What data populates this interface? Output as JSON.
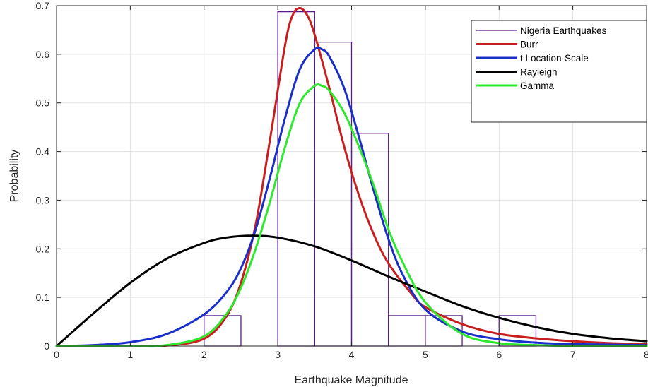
{
  "chart_data": {
    "type": "histogram-with-fitted-curves",
    "xlabel": "Earthquake Magnitude",
    "ylabel": "Probability",
    "xlim": [
      0,
      8
    ],
    "ylim": [
      0,
      0.7
    ],
    "xticks": [
      0,
      1,
      2,
      3,
      4,
      5,
      6,
      7,
      8
    ],
    "yticks": [
      0,
      0.1,
      0.2,
      0.3,
      0.4,
      0.5,
      0.6,
      0.7
    ],
    "xtick_labels": [
      "0",
      "1",
      "2",
      "3",
      "4",
      "5",
      "6",
      "7",
      "8"
    ],
    "ytick_labels": [
      "0",
      "0.1",
      "0.2",
      "0.3",
      "0.4",
      "0.5",
      "0.6",
      "0.7"
    ],
    "grid": true,
    "legend_position": "top-right",
    "histogram": {
      "name": "Nigeria Earthquakes",
      "color": "#5a1a8c",
      "bin_edges": [
        2,
        2.5,
        3,
        3.5,
        4,
        4.5,
        5,
        5.5,
        6,
        6.5
      ],
      "values": [
        0.0625,
        0,
        0.6875,
        0.625,
        0.4375,
        0.0625,
        0.0625,
        0,
        0.0625
      ]
    },
    "series": [
      {
        "name": "Burr",
        "color": "#c81e1e",
        "x": [
          0,
          1,
          1.5,
          2,
          2.3,
          2.5,
          2.7,
          2.9,
          3.1,
          3.2,
          3.3,
          3.4,
          3.5,
          3.7,
          3.9,
          4.1,
          4.3,
          4.5,
          4.8,
          5,
          5.5,
          6,
          6.5,
          7,
          7.5,
          8
        ],
        "y": [
          0,
          0,
          0.001,
          0.015,
          0.06,
          0.13,
          0.25,
          0.43,
          0.62,
          0.68,
          0.695,
          0.68,
          0.64,
          0.53,
          0.41,
          0.31,
          0.23,
          0.17,
          0.11,
          0.08,
          0.045,
          0.025,
          0.016,
          0.01,
          0.006,
          0.004
        ]
      },
      {
        "name": "t Location-Scale",
        "color": "#1a2ec8",
        "x": [
          0,
          0.5,
          1,
          1.5,
          2,
          2.3,
          2.5,
          2.7,
          2.9,
          3.1,
          3.3,
          3.5,
          3.6,
          3.7,
          3.9,
          4.1,
          4.3,
          4.5,
          4.7,
          5,
          5.5,
          6,
          6.5,
          7,
          8
        ],
        "y": [
          0,
          0.002,
          0.008,
          0.025,
          0.065,
          0.11,
          0.16,
          0.24,
          0.35,
          0.47,
          0.57,
          0.61,
          0.61,
          0.595,
          0.53,
          0.43,
          0.32,
          0.22,
          0.145,
          0.075,
          0.03,
          0.014,
          0.007,
          0.004,
          0.002
        ]
      },
      {
        "name": "Rayleigh",
        "color": "#000000",
        "x": [
          0,
          0.5,
          1,
          1.5,
          2,
          2.3,
          2.65,
          3,
          3.5,
          4,
          4.5,
          5,
          5.5,
          6,
          6.5,
          7,
          7.5,
          8
        ],
        "y": [
          0,
          0.067,
          0.13,
          0.18,
          0.212,
          0.223,
          0.227,
          0.223,
          0.205,
          0.176,
          0.143,
          0.112,
          0.082,
          0.058,
          0.039,
          0.025,
          0.016,
          0.01
        ]
      },
      {
        "name": "Gamma",
        "color": "#2ee82e",
        "x": [
          0,
          1,
          1.5,
          2,
          2.3,
          2.5,
          2.7,
          2.9,
          3.1,
          3.3,
          3.5,
          3.6,
          3.7,
          3.9,
          4.1,
          4.3,
          4.5,
          4.7,
          5,
          5.5,
          6,
          6.5,
          7,
          8
        ],
        "y": [
          0,
          0,
          0.002,
          0.02,
          0.065,
          0.12,
          0.2,
          0.3,
          0.41,
          0.5,
          0.535,
          0.535,
          0.525,
          0.48,
          0.41,
          0.33,
          0.24,
          0.17,
          0.09,
          0.025,
          0.006,
          0.002,
          0,
          0
        ]
      }
    ]
  }
}
